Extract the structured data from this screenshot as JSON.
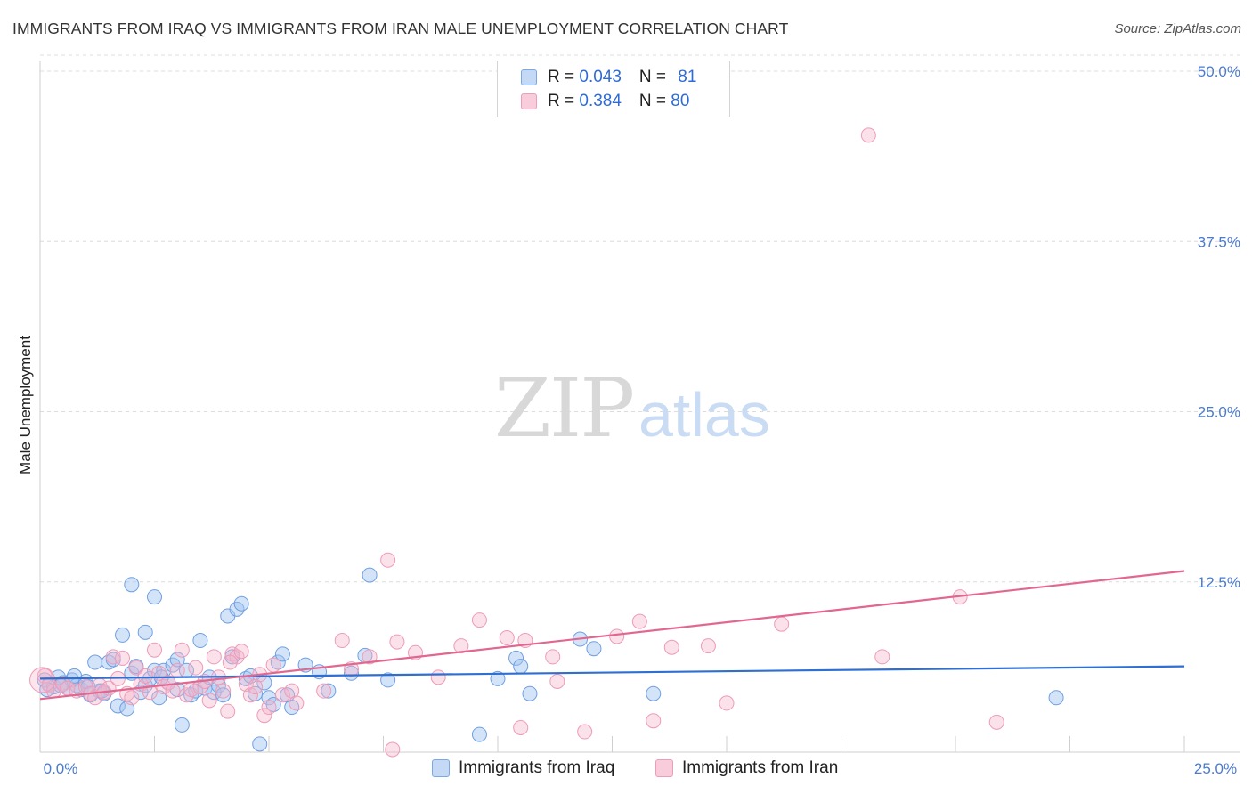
{
  "title": "IMMIGRANTS FROM IRAQ VS IMMIGRANTS FROM IRAN MALE UNEMPLOYMENT CORRELATION CHART",
  "source": "Source: ZipAtlas.com",
  "watermark": {
    "zip": "ZIP",
    "atlas": "atlas"
  },
  "legend": {
    "iraq": {
      "r_label": "R = ",
      "r_value": "0.043",
      "n_label": "N = ",
      "n_value": "81",
      "color": "#7aa7e8"
    },
    "iran": {
      "r_label": "R = ",
      "r_value": "0.384",
      "n_label": "N = ",
      "n_value": "80",
      "color": "#f09bb8"
    }
  },
  "bottom_legend": {
    "iraq": "Immigrants from Iraq",
    "iran": "Immigrants from Iran"
  },
  "chart_data": {
    "type": "scatter",
    "title": "IMMIGRANTS FROM IRAQ VS IMMIGRANTS FROM IRAN MALE UNEMPLOYMENT CORRELATION CHART",
    "xlabel": "",
    "ylabel": "Male Unemployment",
    "xlim": [
      0,
      25
    ],
    "ylim": [
      0,
      50
    ],
    "x_tick_labels": [
      "0.0%",
      "25.0%"
    ],
    "y_tick_labels": [
      "12.5%",
      "25.0%",
      "37.5%",
      "50.0%"
    ],
    "y_tick_values": [
      12.5,
      25.0,
      37.5,
      50.0
    ],
    "series": [
      {
        "name": "Immigrants from Iraq",
        "color": "#7aa7e8",
        "trend": {
          "x0": 0,
          "y0": 5.4,
          "x1": 25,
          "y1": 6.3
        },
        "points": [
          [
            0.1,
            5.3
          ],
          [
            0.2,
            5.0
          ],
          [
            0.3,
            4.8
          ],
          [
            0.4,
            5.5
          ],
          [
            0.5,
            5.1
          ],
          [
            0.6,
            4.7
          ],
          [
            0.7,
            5.3
          ],
          [
            0.8,
            4.9
          ],
          [
            0.9,
            4.6
          ],
          [
            1.0,
            5.2
          ],
          [
            1.1,
            4.2
          ],
          [
            1.2,
            6.6
          ],
          [
            1.3,
            4.5
          ],
          [
            1.4,
            4.3
          ],
          [
            1.5,
            6.6
          ],
          [
            1.6,
            6.8
          ],
          [
            1.7,
            3.4
          ],
          [
            1.8,
            8.6
          ],
          [
            1.9,
            3.2
          ],
          [
            2.0,
            5.8
          ],
          [
            2.0,
            12.3
          ],
          [
            2.1,
            6.3
          ],
          [
            2.2,
            4.4
          ],
          [
            2.3,
            4.9
          ],
          [
            2.3,
            8.8
          ],
          [
            2.4,
            5.4
          ],
          [
            2.5,
            6.0
          ],
          [
            2.5,
            11.4
          ],
          [
            2.6,
            4.0
          ],
          [
            2.7,
            6.0
          ],
          [
            2.8,
            5.1
          ],
          [
            2.9,
            6.4
          ],
          [
            3.0,
            4.6
          ],
          [
            3.1,
            2.0
          ],
          [
            3.2,
            6.0
          ],
          [
            3.3,
            4.2
          ],
          [
            3.4,
            4.5
          ],
          [
            3.5,
            8.2
          ],
          [
            3.6,
            4.7
          ],
          [
            3.7,
            5.5
          ],
          [
            3.8,
            4.4
          ],
          [
            3.9,
            4.9
          ],
          [
            4.0,
            4.2
          ],
          [
            4.1,
            10.0
          ],
          [
            4.2,
            7.0
          ],
          [
            4.3,
            10.5
          ],
          [
            4.4,
            10.9
          ],
          [
            4.5,
            5.4
          ],
          [
            4.6,
            5.6
          ],
          [
            4.7,
            4.3
          ],
          [
            4.8,
            0.6
          ],
          [
            4.9,
            5.1
          ],
          [
            5.0,
            4.0
          ],
          [
            5.1,
            3.5
          ],
          [
            5.2,
            6.6
          ],
          [
            5.3,
            7.2
          ],
          [
            5.4,
            4.2
          ],
          [
            5.5,
            3.3
          ],
          [
            5.8,
            6.4
          ],
          [
            6.1,
            5.9
          ],
          [
            6.3,
            4.5
          ],
          [
            6.8,
            5.8
          ],
          [
            7.1,
            7.1
          ],
          [
            7.2,
            13.0
          ],
          [
            7.6,
            5.3
          ],
          [
            9.6,
            1.3
          ],
          [
            10.0,
            5.4
          ],
          [
            10.4,
            6.9
          ],
          [
            10.5,
            6.3
          ],
          [
            10.7,
            4.3
          ],
          [
            11.8,
            8.3
          ],
          [
            12.1,
            7.6
          ],
          [
            13.4,
            4.3
          ],
          [
            22.2,
            4.0
          ],
          [
            0.15,
            4.6
          ],
          [
            0.45,
            4.9
          ],
          [
            0.75,
            5.6
          ],
          [
            1.05,
            4.8
          ],
          [
            1.35,
            4.5
          ],
          [
            2.65,
            5.5
          ],
          [
            3.0,
            6.8
          ]
        ]
      },
      {
        "name": "Immigrants from Iran",
        "color": "#f09bb8",
        "trend": {
          "x0": 0,
          "y0": 3.9,
          "x1": 25,
          "y1": 13.3
        },
        "points": [
          [
            0.1,
            5.6
          ],
          [
            0.2,
            4.9
          ],
          [
            0.3,
            4.5
          ],
          [
            0.5,
            5.0
          ],
          [
            0.6,
            4.7
          ],
          [
            0.8,
            4.5
          ],
          [
            1.0,
            4.8
          ],
          [
            1.1,
            4.3
          ],
          [
            1.2,
            4.0
          ],
          [
            1.3,
            4.9
          ],
          [
            1.4,
            4.4
          ],
          [
            1.5,
            4.7
          ],
          [
            1.6,
            7.0
          ],
          [
            1.7,
            5.4
          ],
          [
            1.8,
            6.9
          ],
          [
            1.9,
            4.3
          ],
          [
            2.0,
            4.0
          ],
          [
            2.1,
            6.2
          ],
          [
            2.2,
            5.0
          ],
          [
            2.3,
            5.6
          ],
          [
            2.4,
            4.4
          ],
          [
            2.5,
            7.5
          ],
          [
            2.6,
            5.8
          ],
          [
            2.7,
            4.8
          ],
          [
            2.8,
            5.1
          ],
          [
            2.9,
            4.5
          ],
          [
            3.0,
            6.0
          ],
          [
            3.1,
            7.5
          ],
          [
            3.2,
            4.2
          ],
          [
            3.3,
            4.6
          ],
          [
            3.4,
            6.2
          ],
          [
            3.5,
            4.8
          ],
          [
            3.6,
            5.2
          ],
          [
            3.7,
            3.8
          ],
          [
            3.8,
            7.0
          ],
          [
            3.9,
            5.5
          ],
          [
            4.0,
            4.5
          ],
          [
            4.1,
            3.0
          ],
          [
            4.2,
            7.2
          ],
          [
            4.3,
            7.0
          ],
          [
            4.4,
            7.4
          ],
          [
            4.5,
            5.0
          ],
          [
            4.6,
            4.2
          ],
          [
            4.7,
            4.8
          ],
          [
            4.8,
            5.7
          ],
          [
            4.9,
            2.7
          ],
          [
            5.0,
            3.3
          ],
          [
            5.1,
            6.4
          ],
          [
            5.3,
            4.2
          ],
          [
            5.5,
            4.5
          ],
          [
            5.6,
            3.6
          ],
          [
            6.2,
            4.5
          ],
          [
            6.6,
            8.2
          ],
          [
            6.8,
            6.1
          ],
          [
            7.2,
            7.0
          ],
          [
            7.6,
            14.1
          ],
          [
            7.8,
            8.1
          ],
          [
            7.7,
            0.2
          ],
          [
            8.2,
            7.3
          ],
          [
            8.7,
            5.5
          ],
          [
            9.2,
            7.8
          ],
          [
            9.6,
            9.7
          ],
          [
            10.2,
            8.4
          ],
          [
            10.5,
            1.8
          ],
          [
            10.6,
            8.2
          ],
          [
            11.2,
            7.0
          ],
          [
            11.3,
            5.2
          ],
          [
            11.9,
            1.5
          ],
          [
            12.6,
            8.5
          ],
          [
            13.1,
            9.6
          ],
          [
            13.4,
            2.3
          ],
          [
            13.8,
            7.7
          ],
          [
            14.6,
            7.8
          ],
          [
            15.0,
            3.6
          ],
          [
            16.2,
            9.4
          ],
          [
            18.1,
            45.3
          ],
          [
            18.4,
            7.0
          ],
          [
            20.1,
            11.4
          ],
          [
            20.9,
            2.2
          ],
          [
            4.15,
            6.6
          ]
        ]
      }
    ]
  }
}
